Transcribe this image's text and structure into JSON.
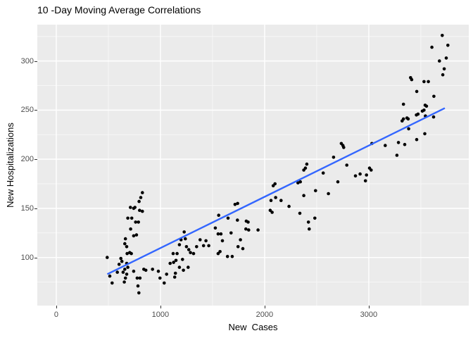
{
  "title": "10 -Day Moving Average Correlations",
  "colors": {
    "background": "#FFFFFF",
    "panel_bg": "#EBEBEB",
    "grid_major": "#FFFFFF",
    "grid_minor": "#F7F7F7",
    "point": "#000000",
    "smooth_line": "#3366FF",
    "tick_label": "#4D4D4D",
    "axis_title": "#000000"
  },
  "chart_data": {
    "type": "scatter",
    "title": "10 -Day Moving Average Correlations",
    "xlabel": "New  Cases",
    "ylabel": "New Hospitalizations",
    "legend": "none",
    "grid": true,
    "x_ticks": [
      0,
      1000,
      2000,
      3000
    ],
    "y_ticks": [
      100,
      150,
      200,
      250,
      300
    ],
    "x_minor": [
      500,
      1500,
      2500,
      3500
    ],
    "y_minor": [
      75,
      125,
      175,
      225,
      275,
      325
    ],
    "xlim": [
      -182,
      3960
    ],
    "ylim": [
      51,
      337
    ],
    "trend_line": {
      "type": "linear",
      "x1": 490,
      "y1": 83,
      "x2": 3730,
      "y2": 252
    },
    "points": [
      [
        489,
        100
      ],
      [
        514,
        81
      ],
      [
        536,
        74
      ],
      [
        586,
        85
      ],
      [
        603,
        93
      ],
      [
        620,
        99
      ],
      [
        630,
        96
      ],
      [
        642,
        85
      ],
      [
        653,
        75
      ],
      [
        658,
        88
      ],
      [
        664,
        119
      ],
      [
        664,
        79
      ],
      [
        676,
        94
      ],
      [
        676,
        83
      ],
      [
        658,
        114
      ],
      [
        676,
        111
      ],
      [
        680,
        104
      ],
      [
        687,
        140
      ],
      [
        687,
        90
      ],
      [
        705,
        105
      ],
      [
        712,
        151
      ],
      [
        714,
        129
      ],
      [
        721,
        104
      ],
      [
        725,
        140
      ],
      [
        743,
        150
      ],
      [
        743,
        122
      ],
      [
        743,
        86
      ],
      [
        755,
        151
      ],
      [
        762,
        136
      ],
      [
        770,
        123
      ],
      [
        777,
        79
      ],
      [
        784,
        71
      ],
      [
        789,
        136
      ],
      [
        793,
        64
      ],
      [
        795,
        157
      ],
      [
        800,
        148
      ],
      [
        804,
        79
      ],
      [
        811,
        161
      ],
      [
        827,
        166
      ],
      [
        827,
        147
      ],
      [
        840,
        88
      ],
      [
        860,
        87
      ],
      [
        924,
        88
      ],
      [
        980,
        86
      ],
      [
        996,
        79
      ],
      [
        1036,
        74
      ],
      [
        1059,
        83
      ],
      [
        1093,
        94
      ],
      [
        1122,
        104
      ],
      [
        1126,
        95
      ],
      [
        1137,
        80
      ],
      [
        1144,
        84
      ],
      [
        1149,
        97
      ],
      [
        1160,
        104
      ],
      [
        1182,
        113
      ],
      [
        1182,
        90
      ],
      [
        1198,
        118
      ],
      [
        1212,
        98
      ],
      [
        1221,
        87
      ],
      [
        1228,
        126
      ],
      [
        1239,
        119
      ],
      [
        1250,
        111
      ],
      [
        1266,
        90
      ],
      [
        1272,
        108
      ],
      [
        1288,
        105
      ],
      [
        1318,
        104
      ],
      [
        1347,
        111
      ],
      [
        1381,
        118
      ],
      [
        1414,
        112
      ],
      [
        1437,
        117
      ],
      [
        1464,
        112
      ],
      [
        1527,
        130
      ],
      [
        1554,
        124
      ],
      [
        1554,
        104
      ],
      [
        1559,
        143
      ],
      [
        1572,
        106
      ],
      [
        1581,
        124
      ],
      [
        1595,
        117
      ],
      [
        1644,
        101
      ],
      [
        1649,
        140
      ],
      [
        1678,
        125
      ],
      [
        1689,
        101
      ],
      [
        1716,
        154
      ],
      [
        1741,
        155
      ],
      [
        1739,
        138
      ],
      [
        1768,
        118
      ],
      [
        1791,
        109
      ],
      [
        1745,
        111
      ],
      [
        1820,
        129
      ],
      [
        1824,
        137
      ],
      [
        1842,
        136
      ],
      [
        1847,
        128
      ],
      [
        1937,
        128
      ],
      [
        2054,
        148
      ],
      [
        2061,
        158
      ],
      [
        2072,
        146
      ],
      [
        2083,
        173
      ],
      [
        2100,
        175
      ],
      [
        2106,
        161
      ],
      [
        2158,
        158
      ],
      [
        2234,
        152
      ],
      [
        2320,
        176
      ],
      [
        2343,
        177
      ],
      [
        2338,
        145
      ],
      [
        2376,
        163
      ],
      [
        2376,
        189
      ],
      [
        2392,
        191
      ],
      [
        2405,
        195
      ],
      [
        2421,
        136
      ],
      [
        2428,
        129
      ],
      [
        2482,
        140
      ],
      [
        2489,
        168
      ],
      [
        2563,
        186
      ],
      [
        2613,
        165
      ],
      [
        2662,
        202
      ],
      [
        2703,
        177
      ],
      [
        2736,
        216
      ],
      [
        2752,
        214
      ],
      [
        2759,
        212
      ],
      [
        2789,
        194
      ],
      [
        2872,
        183
      ],
      [
        2917,
        185
      ],
      [
        2968,
        178
      ],
      [
        2978,
        184
      ],
      [
        3007,
        191
      ],
      [
        3023,
        189
      ],
      [
        3030,
        216
      ],
      [
        3158,
        214
      ],
      [
        3270,
        204
      ],
      [
        3285,
        217
      ],
      [
        3320,
        239
      ],
      [
        3333,
        241
      ],
      [
        3333,
        256
      ],
      [
        3345,
        215
      ],
      [
        3367,
        242
      ],
      [
        3378,
        241
      ],
      [
        3383,
        231
      ],
      [
        3401,
        283
      ],
      [
        3412,
        281
      ],
      [
        3457,
        245
      ],
      [
        3473,
        246
      ],
      [
        3461,
        269
      ],
      [
        3460,
        220
      ],
      [
        3514,
        249
      ],
      [
        3530,
        250
      ],
      [
        3530,
        279
      ],
      [
        3572,
        279
      ],
      [
        3541,
        255
      ],
      [
        3554,
        254
      ],
      [
        3538,
        226
      ],
      [
        3544,
        244
      ],
      [
        3606,
        314
      ],
      [
        3625,
        264
      ],
      [
        3622,
        243
      ],
      [
        3678,
        300
      ],
      [
        3705,
        326
      ],
      [
        3711,
        286
      ],
      [
        3724,
        292
      ],
      [
        3744,
        303
      ],
      [
        3759,
        316
      ]
    ]
  }
}
